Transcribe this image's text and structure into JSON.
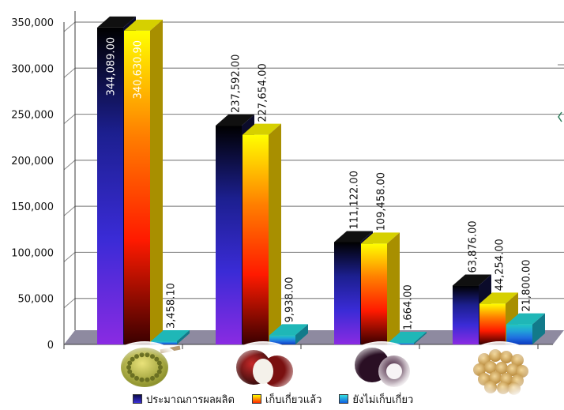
{
  "chart_data": {
    "type": "bar",
    "title": "",
    "xlabel": "",
    "ylabel": "",
    "ylim": [
      0,
      350000
    ],
    "yticks": [
      "0",
      "50,000",
      "100,000",
      "150,000",
      "200,000",
      "250,000",
      "300,000",
      "350,000"
    ],
    "ytick_values": [
      0,
      50000,
      100000,
      150000,
      200000,
      250000,
      300000,
      350000
    ],
    "grid": true,
    "legend_position": "bottom",
    "categories": [
      "durian",
      "rambutan",
      "mangosteen",
      "longkong"
    ],
    "category_icons": [
      "durian-fruit-icon",
      "rambutan-fruit-icon",
      "mangosteen-fruit-icon",
      "longkong-fruit-icon"
    ],
    "series": [
      {
        "name": "ประมาณการผลผลิต",
        "values": [
          344089.0,
          237592.0,
          111122.0,
          63876.0
        ],
        "labels": [
          "344,089.00",
          "237,592.00",
          "111,122.00",
          "63,876.00"
        ],
        "colors": [
          "#000000",
          "#1c1f8f",
          "#3a2bd6",
          "#8a2be2"
        ]
      },
      {
        "name": "เก็บเกี่ยวแล้ว",
        "values": [
          340630.9,
          227654.0,
          109458.0,
          44254.0
        ],
        "labels": [
          "340,630.90",
          "227,654.00",
          "109,458.00",
          "44,254.00"
        ],
        "colors": [
          "#ffff00",
          "#ff7f00",
          "#ff1a00",
          "#3a0000"
        ]
      },
      {
        "name": "ยังไม่เก็บเกี่ยว",
        "values": [
          3458.1,
          9938.0,
          1664.0,
          21800.0
        ],
        "labels": [
          "3,458.10",
          "9,938.00",
          "1,664.00",
          "21,800.00"
        ],
        "colors": [
          "#21c7c2",
          "#21a2d8",
          "#1f6fe0",
          "#0a3bbf"
        ]
      }
    ]
  },
  "colors": {
    "grid": "#8a8a8a",
    "axis": "#3b3b3b",
    "floor": "#8e8aa0"
  },
  "legend": {
    "items": [
      "ประมาณการผลผลิต",
      "เก็บเกี่ยวแล้ว",
      "ยังไม่เก็บเกี่ยว"
    ]
  }
}
